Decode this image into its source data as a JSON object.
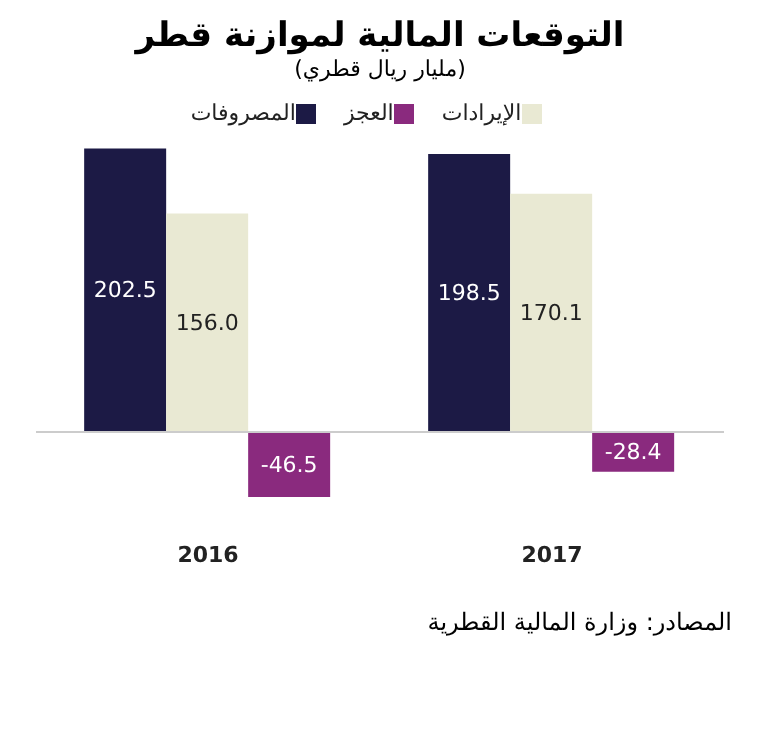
{
  "chart_data": {
    "type": "bar",
    "title": "التوقعات المالية لموازنة قطر",
    "subtitle": "(مليار ريال قطري)",
    "categories": [
      "2016",
      "2017"
    ],
    "series": [
      {
        "name": "المصروفات",
        "color": "#1c1a45",
        "values": [
          202.5,
          198.5
        ],
        "value_labels": [
          "202.5",
          "198.5"
        ]
      },
      {
        "name": "الإيرادات",
        "color": "#e9e9d3",
        "values": [
          156.0,
          170.1
        ],
        "value_labels": [
          "156.0",
          "170.1"
        ]
      },
      {
        "name": "العجز",
        "color": "#8a2a7e",
        "values": [
          -46.5,
          -28.4
        ],
        "value_labels": [
          "-46.5",
          "-28.4"
        ]
      }
    ],
    "legend": "top",
    "grid": false,
    "annotations": [
      "المصادر: وزارة المالية القطرية"
    ]
  }
}
